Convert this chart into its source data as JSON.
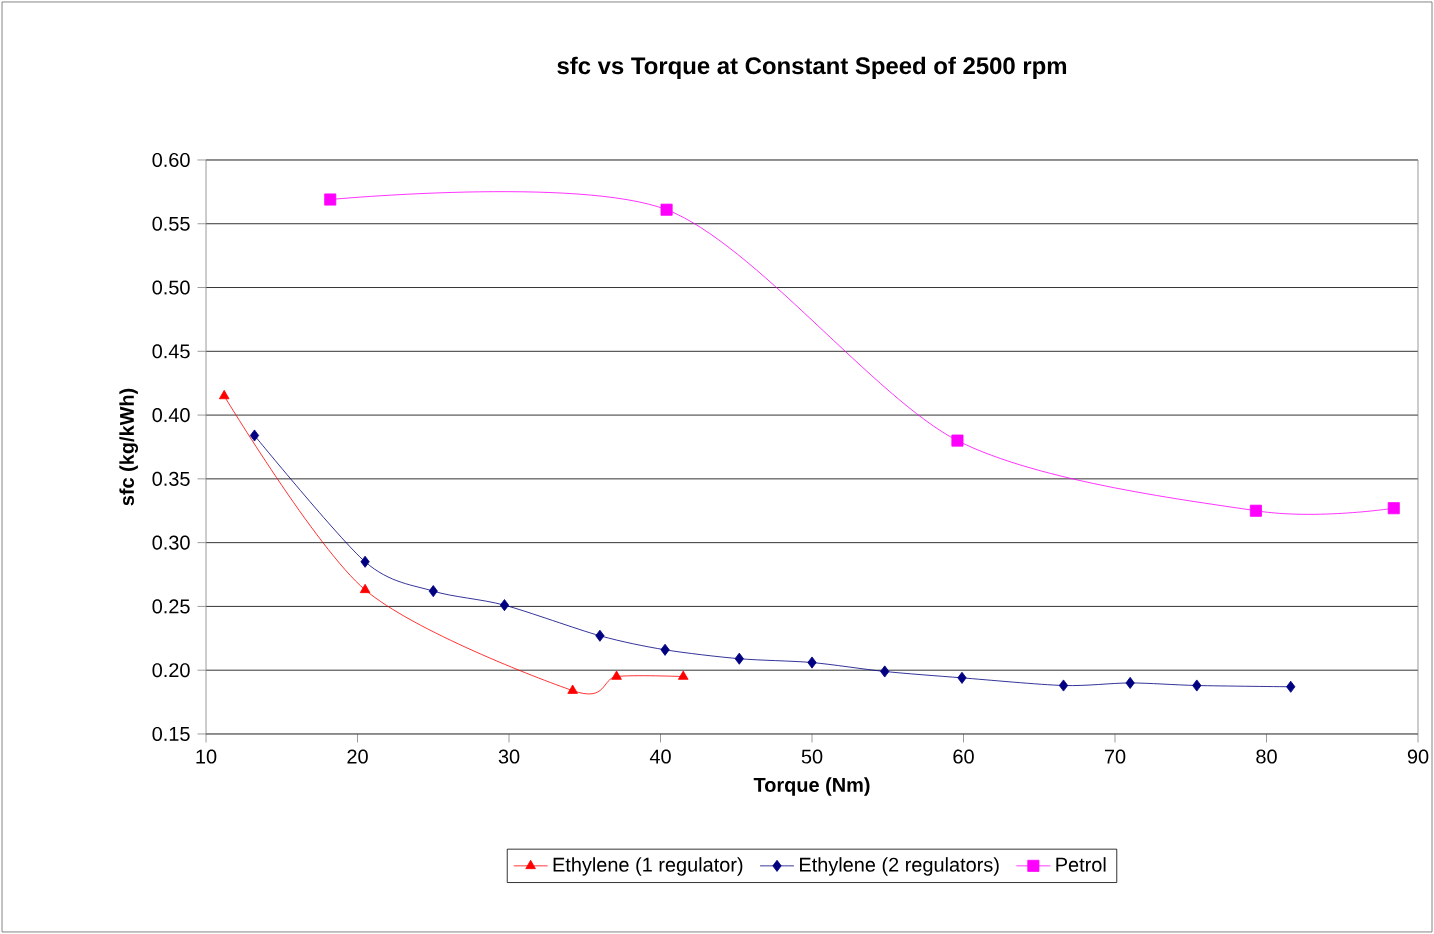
{
  "chart_data": {
    "type": "line",
    "title": "sfc vs Torque at Constant Speed of 2500 rpm",
    "xlabel": "Torque (Nm)",
    "ylabel": "sfc (kg/kWh)",
    "xlim": [
      10,
      90
    ],
    "xticks": [
      10,
      20,
      30,
      40,
      50,
      60,
      70,
      80,
      90
    ],
    "ylim": [
      0.15,
      0.6
    ],
    "yticks": [
      {
        "value": 0.15,
        "label": "0.15"
      },
      {
        "value": 0.2,
        "label": "0.20"
      },
      {
        "value": 0.25,
        "label": "0.25"
      },
      {
        "value": 0.3,
        "label": "0.30"
      },
      {
        "value": 0.35,
        "label": "0.35"
      },
      {
        "value": 0.4,
        "label": "0.40"
      },
      {
        "value": 0.45,
        "label": "0.45"
      },
      {
        "value": 0.5,
        "label": "0.50"
      },
      {
        "value": 0.55,
        "label": "0.55"
      },
      {
        "value": 0.6,
        "label": "0.60"
      }
    ],
    "grid": "y",
    "legend": "bottom",
    "series": [
      {
        "name": "Ethylene (1 regulator)",
        "color": "#ff0000",
        "marker": "triangle",
        "x": [
          11.2,
          20.5,
          34.2,
          37.1,
          41.5
        ],
        "values": [
          0.415,
          0.263,
          0.184,
          0.195,
          0.195
        ]
      },
      {
        "name": "Ethylene (2 regulators)",
        "color": "#000080",
        "marker": "diamond",
        "x": [
          13.2,
          20.5,
          25,
          29.7,
          36,
          40.3,
          45.2,
          50,
          54.8,
          59.9,
          66.6,
          71,
          75.4,
          81.6
        ],
        "values": [
          0.384,
          0.285,
          0.262,
          0.251,
          0.227,
          0.216,
          0.209,
          0.206,
          0.199,
          0.194,
          0.188,
          0.19,
          0.188,
          0.187
        ]
      },
      {
        "name": "Petrol",
        "color": "#ff00ff",
        "marker": "square",
        "x": [
          18.2,
          40.4,
          59.6,
          79.3,
          88.4
        ],
        "values": [
          0.569,
          0.561,
          0.38,
          0.325,
          0.327
        ]
      }
    ]
  }
}
